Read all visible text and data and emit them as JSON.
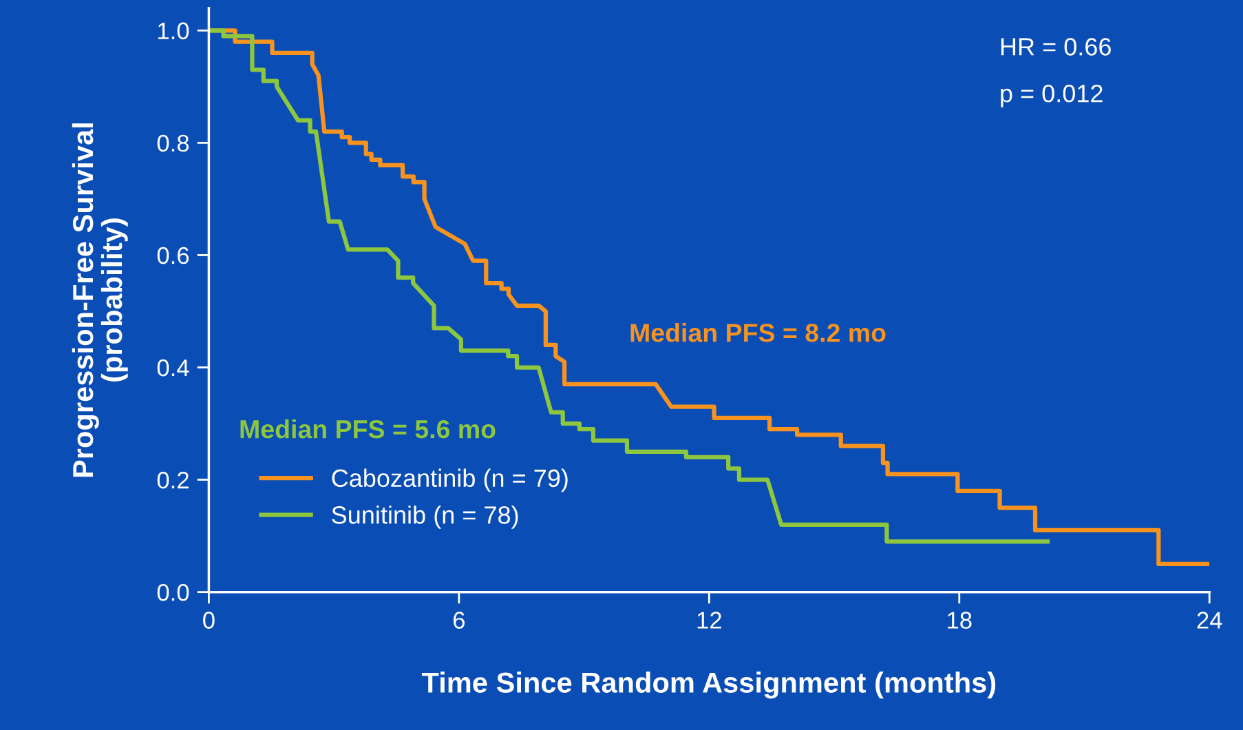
{
  "chart_data": {
    "type": "line",
    "xlabel": "Time Since Random Assignment (months)",
    "ylabel": "Progression-Free Survival\n(probability)",
    "xlim": [
      0,
      24
    ],
    "xticks": [
      0,
      6,
      12,
      18,
      24
    ],
    "ylim": [
      0,
      1.04
    ],
    "yticks": [
      {
        "value": 0,
        "label": "0.0"
      },
      0.2,
      0.4,
      0.6,
      0.8,
      {
        "value": 1,
        "label": "1.0"
      }
    ],
    "grid": false,
    "legend": "bottom left",
    "marker": "none",
    "line_style": "solid",
    "series": [
      {
        "name": "Cabozantinib (n = 79)",
        "color": "#f7931e",
        "x": [
          0,
          0.63,
          0.63,
          1.52,
          1.52,
          2.48,
          2.48,
          2.63,
          2.77,
          3.19,
          3.19,
          3.38,
          3.38,
          3.77,
          3.77,
          3.9,
          3.9,
          4.11,
          4.11,
          4.65,
          4.65,
          4.91,
          4.91,
          5.17,
          5.17,
          5.44,
          6.14,
          6.34,
          6.65,
          6.65,
          7.02,
          7.02,
          7.19,
          7.19,
          7.39,
          7.91,
          8.08,
          8.08,
          8.32,
          8.32,
          8.53,
          8.53,
          10.72,
          11.09,
          12.12,
          12.12,
          13.45,
          13.45,
          14.11,
          14.11,
          15.16,
          15.16,
          16.17,
          16.17,
          16.28,
          16.28,
          17.96,
          17.96,
          18.97,
          18.97,
          19.82,
          19.82,
          22.78,
          22.78,
          24
        ],
        "values": [
          1.0,
          1.0,
          0.98,
          0.98,
          0.96,
          0.96,
          0.94,
          0.92,
          0.82,
          0.82,
          0.81,
          0.81,
          0.8,
          0.8,
          0.78,
          0.78,
          0.77,
          0.77,
          0.76,
          0.76,
          0.74,
          0.74,
          0.73,
          0.73,
          0.7,
          0.65,
          0.62,
          0.59,
          0.59,
          0.55,
          0.55,
          0.54,
          0.54,
          0.53,
          0.51,
          0.51,
          0.5,
          0.44,
          0.44,
          0.42,
          0.41,
          0.37,
          0.37,
          0.33,
          0.33,
          0.31,
          0.31,
          0.29,
          0.29,
          0.28,
          0.28,
          0.26,
          0.26,
          0.23,
          0.23,
          0.21,
          0.21,
          0.18,
          0.18,
          0.15,
          0.15,
          0.11,
          0.11,
          0.05,
          0.05
        ]
      },
      {
        "name": "Sunitinib (n = 78)",
        "color": "#8dc63f",
        "x": [
          0,
          0.35,
          0.35,
          1.04,
          1.04,
          1.31,
          1.31,
          1.63,
          1.63,
          2.14,
          2.43,
          2.43,
          2.57,
          2.88,
          3.14,
          3.34,
          4.28,
          4.54,
          4.54,
          4.9,
          4.9,
          5.4,
          5.4,
          5.74,
          6.05,
          6.05,
          7.18,
          7.18,
          7.39,
          7.39,
          7.91,
          8.21,
          8.49,
          8.49,
          8.89,
          8.89,
          9.22,
          9.22,
          10.03,
          10.03,
          11.45,
          11.45,
          12.46,
          12.46,
          12.72,
          12.72,
          13.4,
          13.73,
          16.26,
          16.26,
          20.17
        ],
        "values": [
          1.0,
          1.0,
          0.99,
          0.99,
          0.93,
          0.93,
          0.91,
          0.91,
          0.9,
          0.84,
          0.84,
          0.82,
          0.82,
          0.66,
          0.66,
          0.61,
          0.61,
          0.59,
          0.56,
          0.56,
          0.55,
          0.51,
          0.47,
          0.47,
          0.45,
          0.43,
          0.43,
          0.42,
          0.42,
          0.4,
          0.4,
          0.32,
          0.32,
          0.3,
          0.3,
          0.29,
          0.29,
          0.27,
          0.27,
          0.25,
          0.25,
          0.24,
          0.24,
          0.22,
          0.22,
          0.2,
          0.2,
          0.12,
          0.12,
          0.09,
          0.09
        ]
      }
    ],
    "annotations": [
      "Median PFS = 8.2 mo",
      "Median PFS = 5.6 mo",
      "HR = 0.66",
      "p = 0.012"
    ]
  }
}
